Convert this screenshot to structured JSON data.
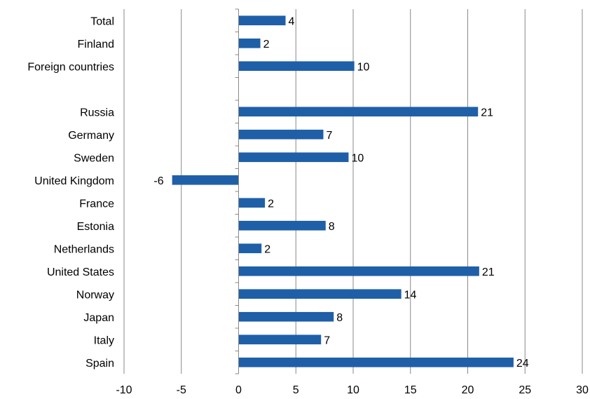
{
  "chart_data": {
    "type": "bar",
    "orientation": "horizontal",
    "categories": [
      "Total",
      "Finland",
      "Foreign countries",
      "",
      "Russia",
      "Germany",
      "Sweden",
      "United Kingdom",
      "France",
      "Estonia",
      "Netherlands",
      "United States",
      "Norway",
      "Japan",
      "Italy",
      "Spain"
    ],
    "values": [
      4,
      2,
      10,
      null,
      21,
      7,
      10,
      -6,
      2,
      8,
      2,
      21,
      14,
      8,
      7,
      24
    ],
    "bar_values": [
      4.1,
      1.9,
      10.1,
      null,
      20.9,
      7.4,
      9.6,
      -5.8,
      2.3,
      7.6,
      2.0,
      21.0,
      14.2,
      8.3,
      7.2,
      24.0
    ],
    "data_labels": [
      "4",
      "2",
      "10",
      "",
      "21",
      "7",
      "10",
      "-6",
      "2",
      "8",
      "2",
      "21",
      "14",
      "8",
      "7",
      "24"
    ],
    "xlim": [
      -10,
      30
    ],
    "x_ticks": [
      -10,
      -5,
      0,
      5,
      10,
      15,
      20,
      25,
      30
    ],
    "x_tick_labels": [
      "-10",
      "-5",
      "0",
      "5",
      "10",
      "15",
      "20",
      "25",
      "30"
    ],
    "grid": "vertical",
    "bar_color": "#1f5fa8",
    "grid_color": "#888888"
  }
}
